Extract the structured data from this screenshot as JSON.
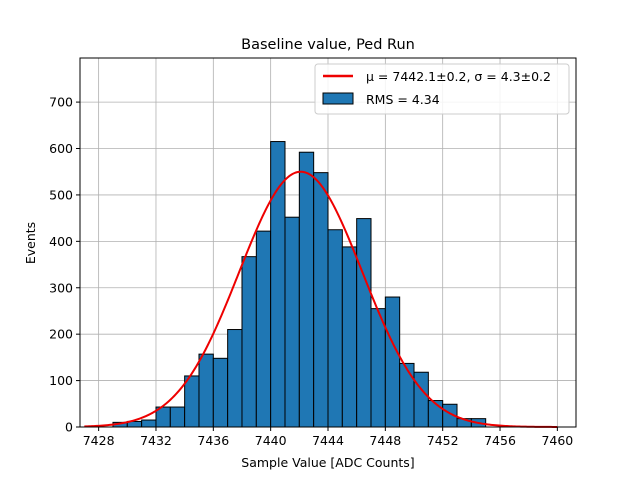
{
  "chart_data": {
    "type": "bar",
    "title": "Baseline value, Ped Run",
    "xlabel": "Sample Value [ADC Counts]",
    "ylabel": "Events",
    "xlim": [
      7426.7,
      7461.3
    ],
    "ylim": [
      0,
      795
    ],
    "xticks": [
      7428,
      7432,
      7436,
      7440,
      7444,
      7448,
      7452,
      7456,
      7460
    ],
    "yticks": [
      0,
      100,
      200,
      300,
      400,
      500,
      600,
      700
    ],
    "grid": true,
    "legend_position": "top-right",
    "bin_width": 1.0,
    "bins_start": [
      7429,
      7430,
      7431,
      7432,
      7433,
      7434,
      7435,
      7436,
      7437,
      7438,
      7439,
      7440,
      7441,
      7442,
      7443,
      7444,
      7445,
      7446,
      7447,
      7448,
      7449,
      7450,
      7451,
      7452,
      7453,
      7454
    ],
    "counts": [
      10,
      12,
      15,
      43,
      43,
      110,
      157,
      148,
      210,
      367,
      422,
      615,
      452,
      592,
      548,
      425,
      388,
      449,
      255,
      280,
      137,
      118,
      57,
      49,
      18,
      18
    ],
    "series": [
      {
        "name": "RMS = 4.34",
        "type": "histogram",
        "color": "#1f77b4",
        "edge_color": "#000000"
      },
      {
        "name": "μ = 7442.1±0.2, σ = 4.3±0.2",
        "type": "line",
        "color": "#ee0000"
      }
    ],
    "gauss_fit": {
      "mu": 7442.1,
      "sigma": 4.3,
      "amplitude": 550,
      "x_range": [
        7427,
        7460
      ]
    }
  }
}
